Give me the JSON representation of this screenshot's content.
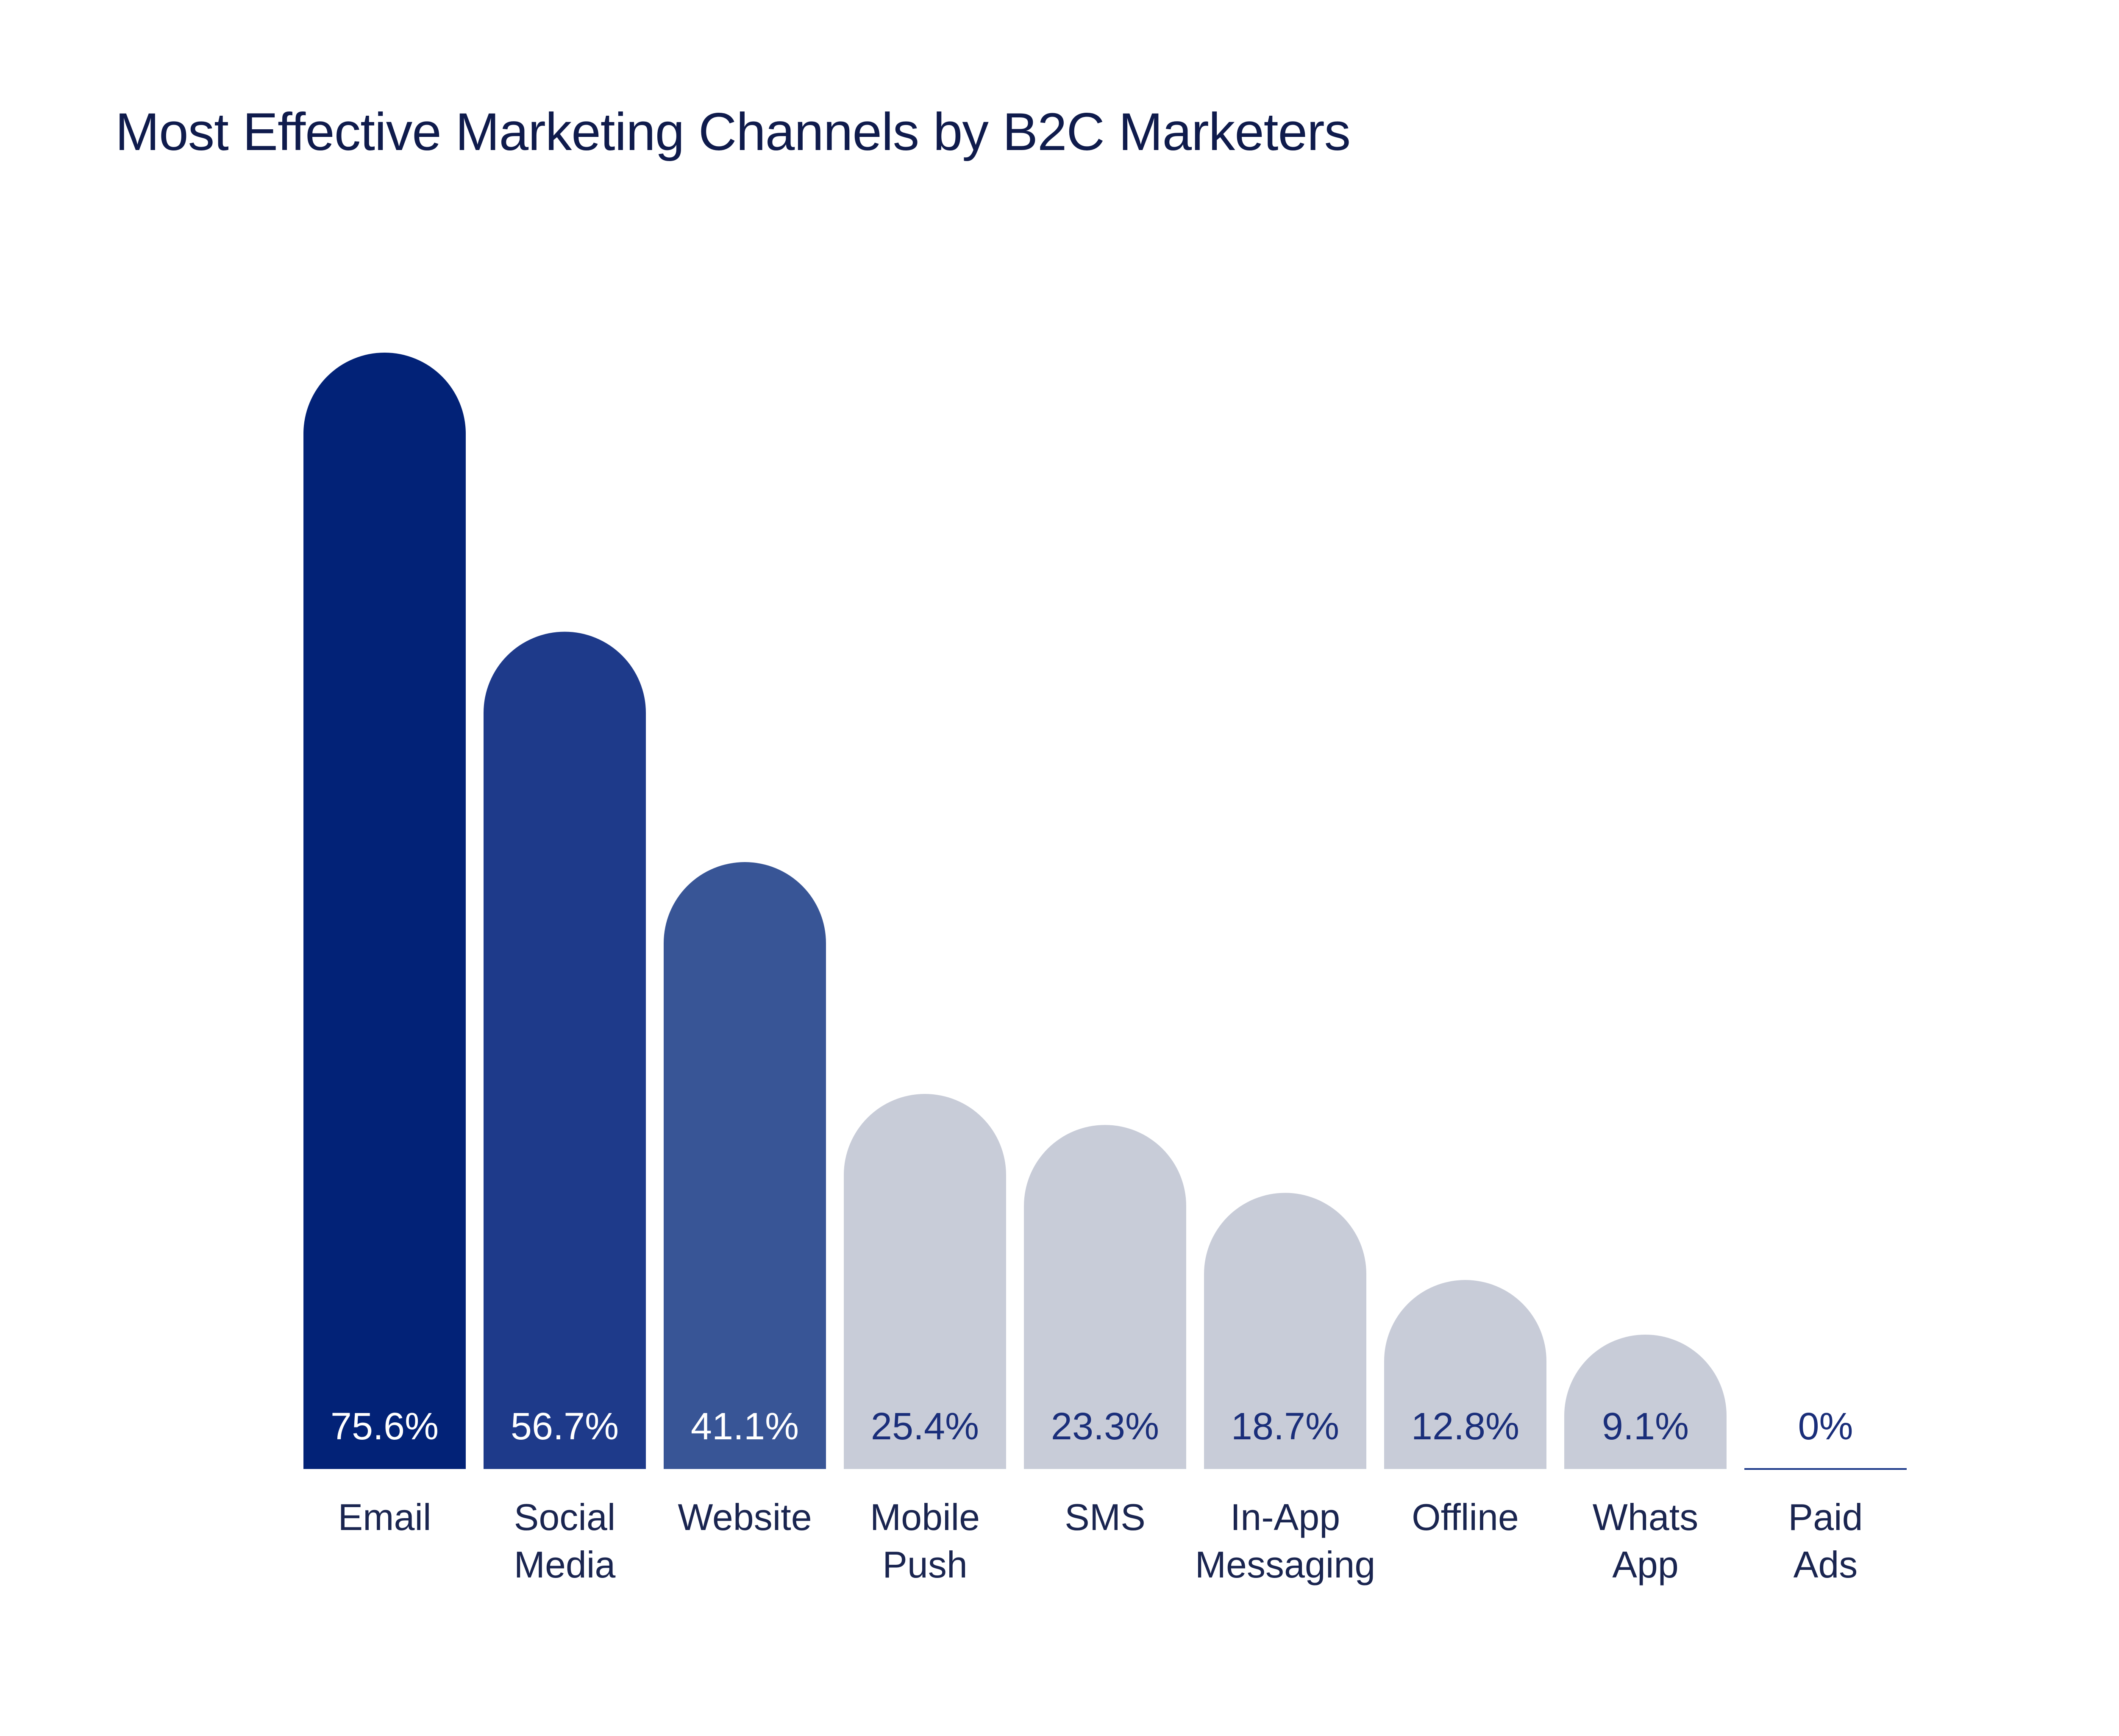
{
  "chart_data": {
    "type": "bar",
    "title": "Most Effective Marketing Channels by B2C Marketers",
    "xlabel": "",
    "ylabel": "",
    "ylim": [
      0,
      75.6
    ],
    "grid": false,
    "categories": [
      [
        "Email"
      ],
      [
        "Social",
        "Media"
      ],
      [
        "Website"
      ],
      [
        "Mobile",
        "Push"
      ],
      [
        "SMS"
      ],
      [
        "In-App",
        "Messaging"
      ],
      [
        "Offline"
      ],
      [
        "Whats",
        "App"
      ],
      [
        "Paid",
        "Ads"
      ]
    ],
    "values": [
      75.6,
      56.7,
      41.1,
      25.4,
      23.3,
      18.7,
      12.8,
      9.1,
      0
    ],
    "value_labels": [
      "75.6%",
      "56.7%",
      "41.1%",
      "25.4%",
      "23.3%",
      "18.7%",
      "12.8%",
      "9.1%",
      "0%"
    ],
    "colors": [
      "#022277",
      "#1e3a8a",
      "#385596",
      "#c8ccd8",
      "#c8ccd8",
      "#c8ccd8",
      "#c8ccd8",
      "#c8ccd8",
      "#1e3a8a"
    ],
    "label_colors": [
      "#ffffff",
      "#ffffff",
      "#ffffff",
      "#1a2e7a",
      "#1a2e7a",
      "#1a2e7a",
      "#1a2e7a",
      "#1a2e7a",
      "#1a2e7a"
    ]
  }
}
